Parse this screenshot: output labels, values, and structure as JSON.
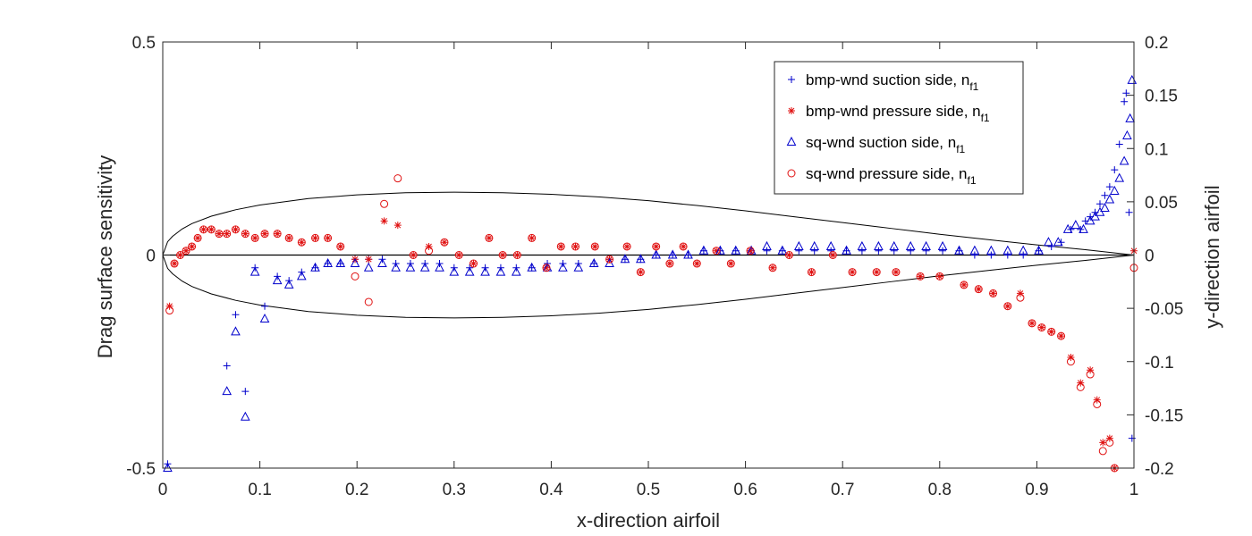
{
  "chart_data": {
    "type": "scatter",
    "xlabel": "x-direction airfoil",
    "ylabel_left": "Drag  surface sensitivity",
    "ylabel_right": "y-direction airfoil",
    "xlim": [
      0,
      1
    ],
    "ylim_left": [
      -0.5,
      0.5
    ],
    "ylim_right": [
      -0.2,
      0.2
    ],
    "x_ticks": [
      "0",
      "0.1",
      "0.2",
      "0.3",
      "0.4",
      "0.5",
      "0.6",
      "0.7",
      "0.8",
      "0.9",
      "1"
    ],
    "y_left_ticks": [
      "-0.5",
      "0",
      "0.5"
    ],
    "y_right_ticks": [
      "-0.2",
      "-0.15",
      "-0.1",
      "-0.05",
      "0",
      "0.05",
      "0.1",
      "0.15",
      "0.2"
    ],
    "legend": [
      {
        "label": "bmp-wnd suction side, n",
        "sub": "f1",
        "marker": "plus",
        "color": "#0000cc"
      },
      {
        "label": "bmp-wnd pressure side, n",
        "sub": "f1",
        "marker": "asterisk",
        "color": "#e01010"
      },
      {
        "label": "sq-wnd suction side, n",
        "sub": "f1",
        "marker": "triangle",
        "color": "#0000cc"
      },
      {
        "label": "sq-wnd pressure side, n",
        "sub": "f1",
        "marker": "circle",
        "color": "#e01010"
      }
    ],
    "series": [
      {
        "name": "bmp-wnd suction side, nf1",
        "marker": "plus",
        "color": "#0000cc",
        "x": [
          0.005,
          0.066,
          0.075,
          0.085,
          0.095,
          0.105,
          0.118,
          0.13,
          0.143,
          0.157,
          0.17,
          0.183,
          0.198,
          0.212,
          0.226,
          0.24,
          0.255,
          0.27,
          0.285,
          0.3,
          0.316,
          0.332,
          0.348,
          0.364,
          0.38,
          0.396,
          0.412,
          0.428,
          0.444,
          0.46,
          0.476,
          0.492,
          0.508,
          0.525,
          0.541,
          0.557,
          0.574,
          0.59,
          0.606,
          0.622,
          0.638,
          0.655,
          0.671,
          0.688,
          0.704,
          0.72,
          0.737,
          0.753,
          0.77,
          0.786,
          0.803,
          0.82,
          0.836,
          0.853,
          0.87,
          0.886,
          0.902,
          0.915,
          0.925,
          0.935,
          0.945,
          0.95,
          0.955,
          0.96,
          0.965,
          0.97,
          0.975,
          0.98,
          0.985,
          0.99,
          0.992,
          0.995,
          0.998
        ],
        "y": [
          -0.49,
          -0.26,
          -0.14,
          -0.32,
          -0.03,
          -0.12,
          -0.05,
          -0.06,
          -0.04,
          -0.03,
          -0.02,
          -0.02,
          -0.01,
          -0.01,
          -0.01,
          -0.02,
          -0.02,
          -0.02,
          -0.02,
          -0.03,
          -0.03,
          -0.03,
          -0.03,
          -0.03,
          -0.03,
          -0.02,
          -0.02,
          -0.02,
          -0.02,
          -0.01,
          -0.01,
          -0.01,
          0.0,
          0.0,
          0.0,
          0.01,
          0.01,
          0.01,
          0.01,
          0.01,
          0.01,
          0.01,
          0.01,
          0.01,
          0.01,
          0.01,
          0.01,
          0.01,
          0.01,
          0.01,
          0.01,
          0.01,
          0.0,
          0.0,
          0.0,
          0.0,
          0.01,
          0.02,
          0.03,
          0.06,
          0.06,
          0.08,
          0.09,
          0.1,
          0.12,
          0.14,
          0.16,
          0.2,
          0.26,
          0.36,
          0.38,
          0.1,
          -0.43
        ]
      },
      {
        "name": "bmp-wnd pressure side, nf1",
        "marker": "asterisk",
        "color": "#e01010",
        "x": [
          0.007,
          0.012,
          0.018,
          0.024,
          0.03,
          0.036,
          0.042,
          0.05,
          0.058,
          0.066,
          0.075,
          0.085,
          0.095,
          0.105,
          0.118,
          0.13,
          0.143,
          0.157,
          0.17,
          0.183,
          0.198,
          0.212,
          0.228,
          0.242,
          0.258,
          0.274,
          0.29,
          0.305,
          0.32,
          0.336,
          0.35,
          0.365,
          0.38,
          0.395,
          0.41,
          0.425,
          0.445,
          0.46,
          0.478,
          0.492,
          0.508,
          0.522,
          0.536,
          0.55,
          0.57,
          0.585,
          0.605,
          0.628,
          0.645,
          0.668,
          0.69,
          0.71,
          0.735,
          0.755,
          0.78,
          0.8,
          0.825,
          0.84,
          0.855,
          0.87,
          0.883,
          0.895,
          0.905,
          0.915,
          0.925,
          0.935,
          0.945,
          0.955,
          0.962,
          0.968,
          0.975,
          0.98,
          1.0
        ],
        "y": [
          -0.12,
          -0.02,
          0.0,
          0.01,
          0.02,
          0.04,
          0.06,
          0.06,
          0.05,
          0.05,
          0.06,
          0.05,
          0.04,
          0.05,
          0.05,
          0.04,
          0.03,
          0.04,
          0.04,
          0.02,
          -0.01,
          -0.01,
          0.08,
          0.07,
          0.0,
          0.02,
          0.03,
          0.0,
          -0.02,
          0.04,
          0.0,
          0.0,
          0.04,
          -0.03,
          0.02,
          0.02,
          0.02,
          -0.01,
          0.02,
          -0.04,
          0.02,
          -0.02,
          0.02,
          -0.02,
          0.01,
          -0.02,
          0.01,
          -0.03,
          0.0,
          -0.04,
          0.0,
          -0.04,
          -0.04,
          -0.04,
          -0.05,
          -0.05,
          -0.07,
          -0.08,
          -0.09,
          -0.12,
          -0.09,
          -0.16,
          -0.17,
          -0.18,
          -0.19,
          -0.24,
          -0.3,
          -0.27,
          -0.34,
          -0.44,
          -0.43,
          -0.5,
          0.01
        ]
      },
      {
        "name": "sq-wnd suction side, nf1",
        "marker": "triangle",
        "color": "#0000cc",
        "x": [
          0.005,
          0.066,
          0.075,
          0.085,
          0.095,
          0.105,
          0.118,
          0.13,
          0.143,
          0.157,
          0.17,
          0.183,
          0.198,
          0.212,
          0.226,
          0.24,
          0.255,
          0.27,
          0.285,
          0.3,
          0.316,
          0.332,
          0.348,
          0.364,
          0.38,
          0.396,
          0.412,
          0.428,
          0.444,
          0.46,
          0.476,
          0.492,
          0.508,
          0.525,
          0.541,
          0.557,
          0.574,
          0.59,
          0.606,
          0.622,
          0.638,
          0.655,
          0.671,
          0.688,
          0.704,
          0.72,
          0.737,
          0.753,
          0.77,
          0.786,
          0.803,
          0.82,
          0.836,
          0.853,
          0.87,
          0.886,
          0.902,
          0.912,
          0.922,
          0.932,
          0.94,
          0.948,
          0.955,
          0.96,
          0.965,
          0.97,
          0.975,
          0.98,
          0.985,
          0.99,
          0.993,
          0.996,
          0.998
        ],
        "y": [
          -0.5,
          -0.32,
          -0.18,
          -0.38,
          -0.04,
          -0.15,
          -0.06,
          -0.07,
          -0.05,
          -0.03,
          -0.02,
          -0.02,
          -0.02,
          -0.03,
          -0.02,
          -0.03,
          -0.03,
          -0.03,
          -0.03,
          -0.04,
          -0.04,
          -0.04,
          -0.04,
          -0.04,
          -0.03,
          -0.03,
          -0.03,
          -0.03,
          -0.02,
          -0.02,
          -0.01,
          -0.01,
          0.0,
          0.0,
          0.0,
          0.01,
          0.01,
          0.01,
          0.01,
          0.02,
          0.01,
          0.02,
          0.02,
          0.02,
          0.01,
          0.02,
          0.02,
          0.02,
          0.02,
          0.02,
          0.02,
          0.01,
          0.01,
          0.01,
          0.01,
          0.01,
          0.01,
          0.03,
          0.03,
          0.06,
          0.07,
          0.06,
          0.08,
          0.09,
          0.1,
          0.11,
          0.13,
          0.15,
          0.18,
          0.22,
          0.28,
          0.32,
          0.41
        ]
      },
      {
        "name": "sq-wnd pressure side, nf1",
        "marker": "circle",
        "color": "#e01010",
        "x": [
          0.007,
          0.012,
          0.018,
          0.024,
          0.03,
          0.036,
          0.042,
          0.05,
          0.058,
          0.066,
          0.075,
          0.085,
          0.095,
          0.105,
          0.118,
          0.13,
          0.143,
          0.157,
          0.17,
          0.183,
          0.198,
          0.212,
          0.228,
          0.242,
          0.258,
          0.274,
          0.29,
          0.305,
          0.32,
          0.336,
          0.35,
          0.365,
          0.38,
          0.395,
          0.41,
          0.425,
          0.445,
          0.46,
          0.478,
          0.492,
          0.508,
          0.522,
          0.536,
          0.55,
          0.57,
          0.585,
          0.605,
          0.628,
          0.645,
          0.668,
          0.69,
          0.71,
          0.735,
          0.755,
          0.78,
          0.8,
          0.825,
          0.84,
          0.855,
          0.87,
          0.883,
          0.895,
          0.905,
          0.915,
          0.925,
          0.935,
          0.945,
          0.955,
          0.962,
          0.968,
          0.975,
          0.98,
          1.0
        ],
        "y": [
          -0.13,
          -0.02,
          0.0,
          0.01,
          0.02,
          0.04,
          0.06,
          0.06,
          0.05,
          0.05,
          0.06,
          0.05,
          0.04,
          0.05,
          0.05,
          0.04,
          0.03,
          0.04,
          0.04,
          0.02,
          -0.05,
          -0.11,
          0.12,
          0.18,
          0.0,
          0.01,
          0.03,
          0.0,
          -0.02,
          0.04,
          0.0,
          0.0,
          0.04,
          -0.03,
          0.02,
          0.02,
          0.02,
          -0.01,
          0.02,
          -0.04,
          0.02,
          -0.02,
          0.02,
          -0.02,
          0.01,
          -0.02,
          0.01,
          -0.03,
          0.0,
          -0.04,
          0.0,
          -0.04,
          -0.04,
          -0.04,
          -0.05,
          -0.05,
          -0.07,
          -0.08,
          -0.09,
          -0.12,
          -0.1,
          -0.16,
          -0.17,
          -0.18,
          -0.19,
          -0.25,
          -0.31,
          -0.28,
          -0.35,
          -0.46,
          -0.44,
          -0.5,
          -0.03
        ]
      }
    ],
    "airfoil": {
      "axis": "right",
      "upper": {
        "x": [
          0,
          0.005,
          0.01,
          0.02,
          0.03,
          0.05,
          0.075,
          0.1,
          0.15,
          0.2,
          0.25,
          0.3,
          0.35,
          0.4,
          0.45,
          0.5,
          0.55,
          0.6,
          0.65,
          0.7,
          0.75,
          0.8,
          0.85,
          0.9,
          0.95,
          0.975,
          1
        ],
        "y": [
          0,
          0.0125,
          0.0175,
          0.0245,
          0.0295,
          0.0365,
          0.0425,
          0.047,
          0.053,
          0.0565,
          0.0585,
          0.059,
          0.0585,
          0.057,
          0.0545,
          0.051,
          0.0465,
          0.0415,
          0.036,
          0.0305,
          0.025,
          0.0195,
          0.0145,
          0.0095,
          0.005,
          0.0025,
          0
        ]
      },
      "lower": {
        "x": [
          0,
          0.005,
          0.01,
          0.02,
          0.03,
          0.05,
          0.075,
          0.1,
          0.15,
          0.2,
          0.25,
          0.3,
          0.35,
          0.4,
          0.45,
          0.5,
          0.55,
          0.6,
          0.65,
          0.7,
          0.75,
          0.8,
          0.85,
          0.9,
          0.95,
          0.975,
          1
        ],
        "y": [
          0,
          -0.0125,
          -0.0175,
          -0.0245,
          -0.0295,
          -0.0365,
          -0.0425,
          -0.047,
          -0.053,
          -0.0565,
          -0.0585,
          -0.059,
          -0.0585,
          -0.057,
          -0.0545,
          -0.051,
          -0.0465,
          -0.0415,
          -0.036,
          -0.0305,
          -0.025,
          -0.0195,
          -0.0145,
          -0.0095,
          -0.005,
          -0.0025,
          0
        ]
      },
      "chord_line": {
        "x": [
          0,
          1
        ],
        "y": [
          0,
          0
        ]
      }
    }
  }
}
